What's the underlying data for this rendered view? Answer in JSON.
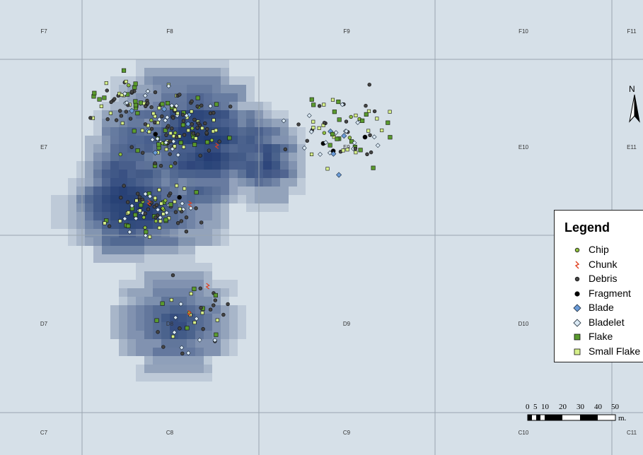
{
  "grid": {
    "columns": [
      "7",
      "8",
      "9",
      "10",
      "11"
    ],
    "rows": [
      "F",
      "E",
      "D",
      "C"
    ],
    "background": "#d6e0e8",
    "line_color": "#9aa5b0"
  },
  "legend": {
    "title": "Legend",
    "items": [
      {
        "label": "Chip",
        "symbol": "circle",
        "color": "#8fbf3f"
      },
      {
        "label": "Chunk",
        "symbol": "chunk",
        "color": "#e04020"
      },
      {
        "label": "Debris",
        "symbol": "circle",
        "color": "#444444"
      },
      {
        "label": "Fragment",
        "symbol": "circle",
        "color": "#000000"
      },
      {
        "label": "Blade",
        "symbol": "diamond",
        "color": "#6a9bd8"
      },
      {
        "label": "Bladelet",
        "symbol": "diamond",
        "color": "#dbe9f4"
      },
      {
        "label": "Flake",
        "symbol": "square",
        "color": "#5a9a2e"
      },
      {
        "label": "Small Flake",
        "symbol": "square",
        "color": "#d6f08a"
      }
    ]
  },
  "north_arrow": {
    "label": "N"
  },
  "scale_bar": {
    "ticks": [
      "0",
      "5",
      "10",
      "20",
      "30",
      "40",
      "50"
    ],
    "unit": "m."
  },
  "density_color": "#1e3870"
}
